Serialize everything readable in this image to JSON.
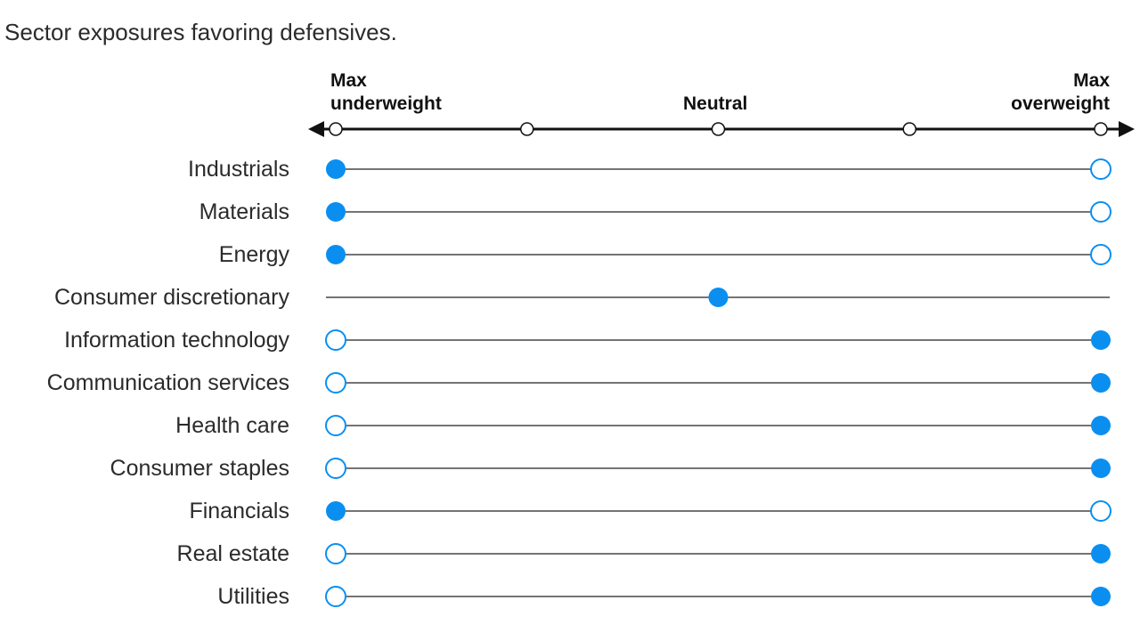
{
  "subtitle": "Sector exposures favoring defensives.",
  "chart_data": {
    "type": "dot-scale",
    "scale": {
      "positions": 5,
      "labels": {
        "min": "Max underweight",
        "min_line1": "Max",
        "min_line2": "underweight",
        "neutral": "Neutral",
        "max": "Max overweight",
        "max_line1": "Max",
        "max_line2": "overweight"
      }
    },
    "rows": [
      {
        "sector": "Industrials",
        "current": 0,
        "previous": 4
      },
      {
        "sector": "Materials",
        "current": 0,
        "previous": 4
      },
      {
        "sector": "Energy",
        "current": 0,
        "previous": 4
      },
      {
        "sector": "Consumer discretionary",
        "current": 2,
        "previous": null
      },
      {
        "sector": "Information technology",
        "current": 4,
        "previous": 0
      },
      {
        "sector": "Communication services",
        "current": 4,
        "previous": 0
      },
      {
        "sector": "Health care",
        "current": 4,
        "previous": 0
      },
      {
        "sector": "Consumer staples",
        "current": 4,
        "previous": 0
      },
      {
        "sector": "Financials",
        "current": 0,
        "previous": 4
      },
      {
        "sector": "Real estate",
        "current": 4,
        "previous": 0
      },
      {
        "sector": "Utilities",
        "current": 4,
        "previous": 0
      }
    ]
  },
  "colors": {
    "dot": "#0a8ff0",
    "axis": "#111111",
    "line": "#222222"
  }
}
